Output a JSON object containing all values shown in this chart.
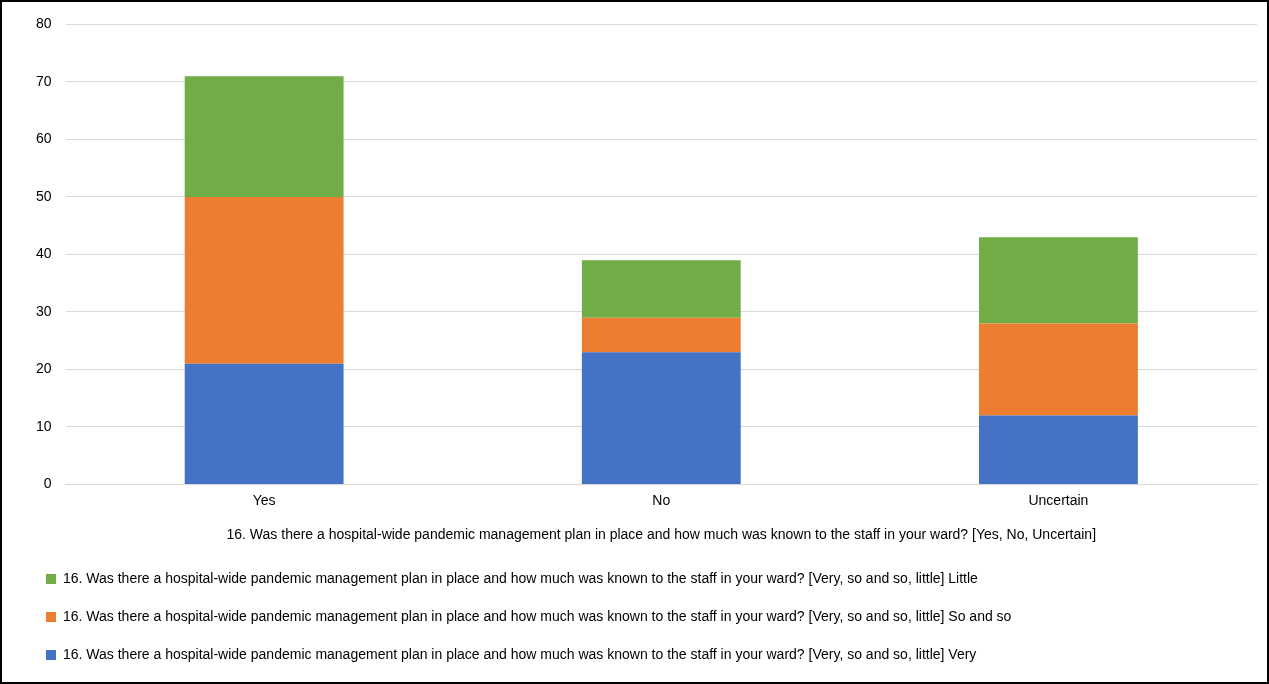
{
  "chart_data": {
    "type": "bar",
    "stacked": true,
    "categories": [
      "Yes",
      "No",
      "Uncertain"
    ],
    "xlabel": "16. Was there a hospital-wide pandemic management plan in place and how much was known to the staff in your ward? [Yes, No, Uncertain]",
    "series": [
      {
        "name": "16. Was there a hospital-wide pandemic management plan in place and how much was known to the staff in your ward? [Very, so and so, little] Very",
        "color": "#4472c4",
        "values": [
          21,
          23,
          12
        ]
      },
      {
        "name": "16. Was there a hospital-wide pandemic management plan in place and how much was known to the staff in your ward? [Very, so and so, little] So and so",
        "color": "#ed7d31",
        "values": [
          29,
          6,
          16
        ]
      },
      {
        "name": "16. Was there a hospital-wide pandemic management plan in place and how much was known to the staff in your ward? [Very, so and so, little] Little",
        "color": "#70ad47",
        "values": [
          21,
          10,
          15
        ]
      }
    ],
    "ylim": [
      0,
      80
    ],
    "yticks": [
      0,
      10,
      20,
      30,
      40,
      50,
      60,
      70,
      80
    ],
    "grid": "y",
    "legend": "bottom"
  }
}
